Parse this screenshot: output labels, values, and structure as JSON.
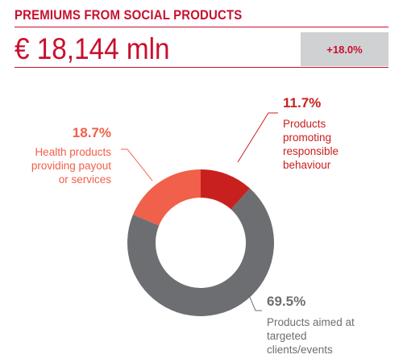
{
  "header": {
    "title": "PREMIUMS FROM SOCIAL PRODUCTS",
    "amount": "€ 18,144 mln",
    "change": "+18.0%"
  },
  "colors": {
    "accent": "#c8102e",
    "grey": "#6d6e71",
    "salmon": "#f0604a",
    "box": "#d0d1d3"
  },
  "chart_data": {
    "type": "pie",
    "variant": "donut",
    "title": "",
    "slices": [
      {
        "label_lines": [
          "Products",
          "promoting",
          "responsible",
          "behaviour"
        ],
        "value": 11.7,
        "value_label": "11.7%",
        "color": "#c8201e"
      },
      {
        "label_lines": [
          "Products aimed at",
          "targeted",
          "clients/events"
        ],
        "value": 69.5,
        "value_label": "69.5%",
        "color": "#6d6e71"
      },
      {
        "label_lines": [
          "Health products",
          "providing payout",
          "or services"
        ],
        "value": 18.7,
        "value_label": "18.7%",
        "color": "#f0604a"
      }
    ]
  }
}
